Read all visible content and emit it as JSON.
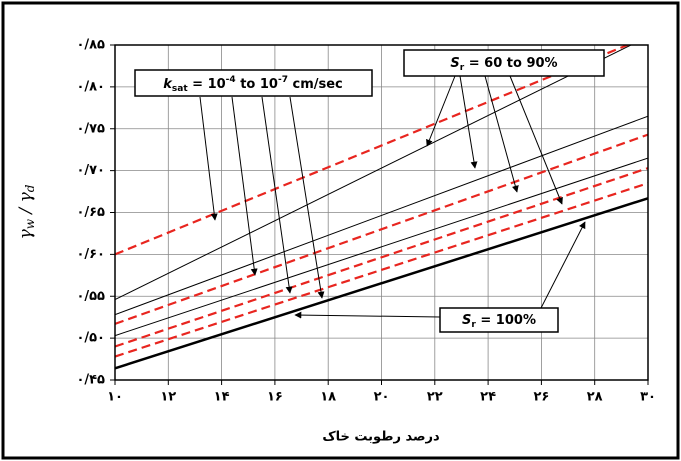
{
  "chart_data": {
    "type": "line",
    "y_label_parts": [
      "γ",
      "w",
      " / γ",
      "d"
    ],
    "x_label": "درصد رطوبت خاک",
    "xlim": [
      10,
      30
    ],
    "xticks": [
      {
        "value": 10,
        "label": "۱۰"
      },
      {
        "value": 12,
        "label": "۱۲"
      },
      {
        "value": 14,
        "label": "۱۴"
      },
      {
        "value": 16,
        "label": "۱۶"
      },
      {
        "value": 18,
        "label": "۱۸"
      },
      {
        "value": 20,
        "label": "۲۰"
      },
      {
        "value": 22,
        "label": "۲۲"
      },
      {
        "value": 24,
        "label": "۲۴"
      },
      {
        "value": 26,
        "label": "۲۶"
      },
      {
        "value": 28,
        "label": "۲۸"
      },
      {
        "value": 30,
        "label": "۳۰"
      }
    ],
    "ylim": [
      0.45,
      0.85
    ],
    "yticks": [
      {
        "value": 0.45,
        "label": "۰/۴۵"
      },
      {
        "value": 0.5,
        "label": "۰/۵۰"
      },
      {
        "value": 0.55,
        "label": "۰/۵۵"
      },
      {
        "value": 0.6,
        "label": "۰/۶۰"
      },
      {
        "value": 0.65,
        "label": "۰/۶۵"
      },
      {
        "value": 0.7,
        "label": "۰/۷۰"
      },
      {
        "value": 0.75,
        "label": "۰/۷۵"
      },
      {
        "value": 0.8,
        "label": "۰/۸۰"
      },
      {
        "value": 0.85,
        "label": "۰/۸۵"
      }
    ],
    "grid": true,
    "series": [
      {
        "color": "#000000",
        "style": "solid",
        "width": 1,
        "x": [
          10,
          30
        ],
        "values": [
          0.546,
          0.86
        ]
      },
      {
        "color": "#000000",
        "style": "solid",
        "width": 1,
        "x": [
          10,
          30
        ],
        "values": [
          0.528,
          0.765
        ]
      },
      {
        "color": "#000000",
        "style": "solid",
        "width": 1,
        "x": [
          10,
          30
        ],
        "values": [
          0.503,
          0.715
        ]
      },
      {
        "color": "#e8251f",
        "style": "dashed",
        "width": 2.2,
        "x": [
          10,
          30
        ],
        "values": [
          0.6,
          0.86
        ]
      },
      {
        "color": "#e8251f",
        "style": "dashed",
        "width": 2.2,
        "x": [
          10,
          30
        ],
        "values": [
          0.517,
          0.743
        ]
      },
      {
        "color": "#e8251f",
        "style": "dashed",
        "width": 2.2,
        "x": [
          10,
          30
        ],
        "values": [
          0.49,
          0.703
        ]
      },
      {
        "color": "#e8251f",
        "style": "dashed",
        "width": 2.2,
        "x": [
          10,
          30
        ],
        "values": [
          0.478,
          0.685
        ]
      },
      {
        "color": "#000000",
        "style": "solid",
        "width": 2.5,
        "x": [
          10,
          30
        ],
        "values": [
          0.464,
          0.667
        ]
      }
    ],
    "annotations": [
      {
        "parts": [
          "k",
          "sat",
          " = 10",
          "-4",
          " to 10",
          "-7",
          " cm/sec"
        ]
      },
      {
        "parts": [
          "S",
          "r",
          " = 60 to 90%"
        ]
      },
      {
        "parts": [
          "S",
          "r",
          " = 100%"
        ]
      }
    ]
  }
}
